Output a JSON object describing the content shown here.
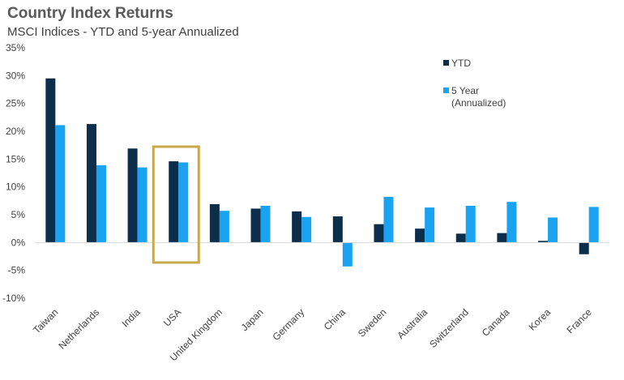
{
  "chart_data": {
    "type": "bar",
    "title": "Country Index Returns",
    "subtitle": "MSCI Indices - YTD and 5-year Annualized",
    "categories": [
      "Taiwan",
      "Netherlands",
      "India",
      "USA",
      "United Kingdom",
      "Japan",
      "Germany",
      "China",
      "Sweden",
      "Australia",
      "Switzerland",
      "Canada",
      "Korea",
      "France"
    ],
    "series": [
      {
        "name": "YTD",
        "color": "#0d2e4b",
        "values": [
          29.5,
          21.3,
          16.9,
          14.6,
          6.9,
          6.1,
          5.6,
          4.7,
          3.3,
          2.5,
          1.6,
          1.7,
          0.3,
          -2.1
        ]
      },
      {
        "name": "5 Year (Annualized)",
        "color": "#1aa3f0",
        "values": [
          21.1,
          13.9,
          13.5,
          14.4,
          5.7,
          6.6,
          4.6,
          -4.3,
          8.2,
          6.3,
          6.6,
          7.3,
          4.5,
          6.4
        ]
      }
    ],
    "ylim": [
      -10,
      35
    ],
    "yticks": [
      -10,
      -5,
      0,
      5,
      10,
      15,
      20,
      25,
      30,
      35
    ],
    "ytick_labels": [
      "-10%",
      "-5%",
      "0%",
      "5%",
      "10%",
      "15%",
      "20%",
      "25%",
      "30%",
      "35%"
    ],
    "highlight_category": "USA",
    "highlight_color": "#c9a84c",
    "legend_position": "top-right",
    "grid": false
  }
}
